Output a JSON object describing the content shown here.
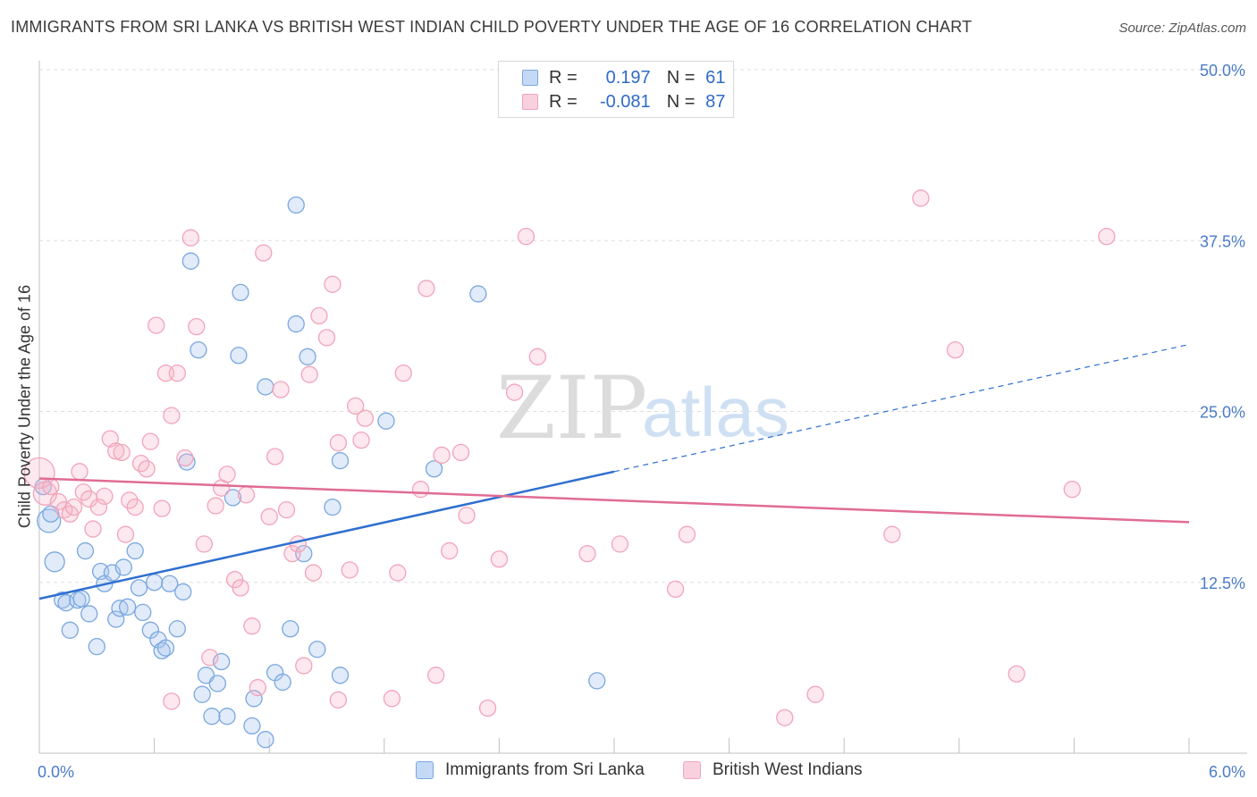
{
  "title": "IMMIGRANTS FROM SRI LANKA VS BRITISH WEST INDIAN CHILD POVERTY UNDER THE AGE OF 16 CORRELATION CHART",
  "source": "Source: ZipAtlas.com",
  "watermark": {
    "zip": "ZIP",
    "atlas": "atlas"
  },
  "legend": {
    "r_label": "R =",
    "n_label": "N =",
    "rows": [
      {
        "r": "0.197",
        "n": "61",
        "color": "#a9c7ee"
      },
      {
        "r": "-0.081",
        "n": "87",
        "color": "#f5b3c6"
      }
    ]
  },
  "bottom_legend": [
    {
      "label": "Immigrants from Sri Lanka",
      "color": "#a9c7ee"
    },
    {
      "label": "British West Indians",
      "color": "#f5b3c6"
    }
  ],
  "chart_data": {
    "type": "scatter",
    "title": "IMMIGRANTS FROM SRI LANKA VS BRITISH WEST INDIAN CHILD POVERTY UNDER THE AGE OF 16 CORRELATION CHART",
    "xlabel": "",
    "ylabel": "Child Poverty Under the Age of 16",
    "xlim": [
      0,
      6
    ],
    "ylim": [
      0,
      50
    ],
    "x_tick_labels": [
      "0.0%",
      "6.0%"
    ],
    "y_tick_labels": [
      "12.5%",
      "25.0%",
      "37.5%",
      "50.0%"
    ],
    "y_ticks": [
      12.5,
      25,
      37.5,
      50
    ],
    "grid": true,
    "series": [
      {
        "name": "Immigrants from Sri Lanka",
        "color": "#7aa7e0",
        "trend": {
          "x0": 0,
          "y0": 11.3,
          "x1": 3.0,
          "y1": 20.6,
          "dash_to_x": 6.0,
          "dash_to_y": 29.9,
          "color": "#2f6fd0"
        },
        "points": [
          [
            0.02,
            19.5
          ],
          [
            0.05,
            17.0
          ],
          [
            0.06,
            17.5
          ],
          [
            0.08,
            14.0
          ],
          [
            0.12,
            11.2
          ],
          [
            0.14,
            11.0
          ],
          [
            0.16,
            9.0
          ],
          [
            0.2,
            11.2
          ],
          [
            0.22,
            11.3
          ],
          [
            0.24,
            14.8
          ],
          [
            0.26,
            10.2
          ],
          [
            0.3,
            7.8
          ],
          [
            0.32,
            13.3
          ],
          [
            0.34,
            12.4
          ],
          [
            0.38,
            13.2
          ],
          [
            0.4,
            9.8
          ],
          [
            0.42,
            10.6
          ],
          [
            0.44,
            13.6
          ],
          [
            0.46,
            10.7
          ],
          [
            0.5,
            14.8
          ],
          [
            0.52,
            12.1
          ],
          [
            0.54,
            10.3
          ],
          [
            0.58,
            9.0
          ],
          [
            0.6,
            12.5
          ],
          [
            0.62,
            8.3
          ],
          [
            0.64,
            7.5
          ],
          [
            0.66,
            7.7
          ],
          [
            0.68,
            12.4
          ],
          [
            0.72,
            9.1
          ],
          [
            0.75,
            11.8
          ],
          [
            0.77,
            21.3
          ],
          [
            0.79,
            36.0
          ],
          [
            0.83,
            29.5
          ],
          [
            0.85,
            4.3
          ],
          [
            0.87,
            5.7
          ],
          [
            0.9,
            2.7
          ],
          [
            0.93,
            5.1
          ],
          [
            0.95,
            6.7
          ],
          [
            0.98,
            2.7
          ],
          [
            1.01,
            18.7
          ],
          [
            1.04,
            29.1
          ],
          [
            1.05,
            33.7
          ],
          [
            1.11,
            2.0
          ],
          [
            1.12,
            4.0
          ],
          [
            1.18,
            1.0
          ],
          [
            1.18,
            26.8
          ],
          [
            1.23,
            5.9
          ],
          [
            1.27,
            5.2
          ],
          [
            1.31,
            9.1
          ],
          [
            1.34,
            40.1
          ],
          [
            1.34,
            31.4
          ],
          [
            1.38,
            14.6
          ],
          [
            1.4,
            29.0
          ],
          [
            1.45,
            7.6
          ],
          [
            1.53,
            18.0
          ],
          [
            1.57,
            21.4
          ],
          [
            1.57,
            5.7
          ],
          [
            1.81,
            24.3
          ],
          [
            2.06,
            20.8
          ],
          [
            2.29,
            33.6
          ],
          [
            2.91,
            5.3
          ]
        ]
      },
      {
        "name": "British West Indians",
        "color": "#f2a3ba",
        "trend": {
          "x0": 0,
          "y0": 20.1,
          "x1": 6.0,
          "y1": 16.9,
          "color": "#e06c94"
        },
        "points": [
          [
            0.0,
            20.5
          ],
          [
            0.03,
            19.0
          ],
          [
            0.06,
            19.5
          ],
          [
            0.1,
            18.4
          ],
          [
            0.13,
            17.8
          ],
          [
            0.16,
            17.5
          ],
          [
            0.18,
            18.0
          ],
          [
            0.21,
            20.6
          ],
          [
            0.23,
            19.1
          ],
          [
            0.26,
            18.6
          ],
          [
            0.28,
            16.4
          ],
          [
            0.31,
            18.0
          ],
          [
            0.34,
            18.8
          ],
          [
            0.37,
            23.0
          ],
          [
            0.4,
            22.1
          ],
          [
            0.43,
            22.0
          ],
          [
            0.45,
            16.0
          ],
          [
            0.47,
            18.5
          ],
          [
            0.5,
            18.0
          ],
          [
            0.53,
            21.2
          ],
          [
            0.56,
            20.8
          ],
          [
            0.58,
            22.8
          ],
          [
            0.61,
            31.3
          ],
          [
            0.64,
            17.9
          ],
          [
            0.66,
            27.8
          ],
          [
            0.69,
            24.7
          ],
          [
            0.72,
            27.8
          ],
          [
            0.76,
            21.6
          ],
          [
            0.79,
            37.7
          ],
          [
            0.82,
            31.2
          ],
          [
            0.86,
            15.3
          ],
          [
            0.89,
            7.0
          ],
          [
            0.92,
            18.1
          ],
          [
            0.95,
            19.4
          ],
          [
            0.98,
            20.4
          ],
          [
            1.02,
            12.7
          ],
          [
            1.05,
            12.1
          ],
          [
            1.08,
            18.9
          ],
          [
            1.11,
            9.3
          ],
          [
            1.14,
            4.8
          ],
          [
            1.17,
            36.6
          ],
          [
            1.2,
            17.3
          ],
          [
            1.23,
            21.7
          ],
          [
            1.26,
            26.6
          ],
          [
            1.29,
            17.8
          ],
          [
            1.32,
            14.6
          ],
          [
            1.35,
            15.3
          ],
          [
            1.38,
            6.4
          ],
          [
            1.41,
            27.7
          ],
          [
            1.43,
            13.2
          ],
          [
            1.46,
            32.0
          ],
          [
            1.5,
            30.4
          ],
          [
            1.53,
            34.3
          ],
          [
            1.56,
            22.7
          ],
          [
            1.62,
            13.4
          ],
          [
            1.65,
            25.4
          ],
          [
            1.68,
            22.9
          ],
          [
            1.7,
            24.5
          ],
          [
            1.84,
            4.0
          ],
          [
            1.87,
            13.2
          ],
          [
            1.9,
            27.8
          ],
          [
            1.99,
            19.3
          ],
          [
            2.02,
            34.0
          ],
          [
            2.07,
            5.7
          ],
          [
            2.1,
            21.8
          ],
          [
            2.14,
            14.8
          ],
          [
            2.2,
            22.0
          ],
          [
            2.23,
            17.4
          ],
          [
            2.34,
            3.3
          ],
          [
            2.4,
            14.2
          ],
          [
            2.48,
            26.4
          ],
          [
            2.54,
            37.8
          ],
          [
            2.6,
            29.0
          ],
          [
            2.86,
            14.6
          ],
          [
            3.03,
            15.3
          ],
          [
            3.32,
            12.0
          ],
          [
            3.38,
            16.0
          ],
          [
            3.89,
            2.6
          ],
          [
            4.05,
            4.3
          ],
          [
            4.45,
            16.0
          ],
          [
            4.6,
            40.6
          ],
          [
            4.78,
            29.5
          ],
          [
            5.1,
            5.8
          ],
          [
            5.39,
            19.3
          ],
          [
            5.57,
            37.8
          ],
          [
            1.56,
            3.9
          ],
          [
            0.69,
            3.8
          ]
        ]
      }
    ]
  }
}
